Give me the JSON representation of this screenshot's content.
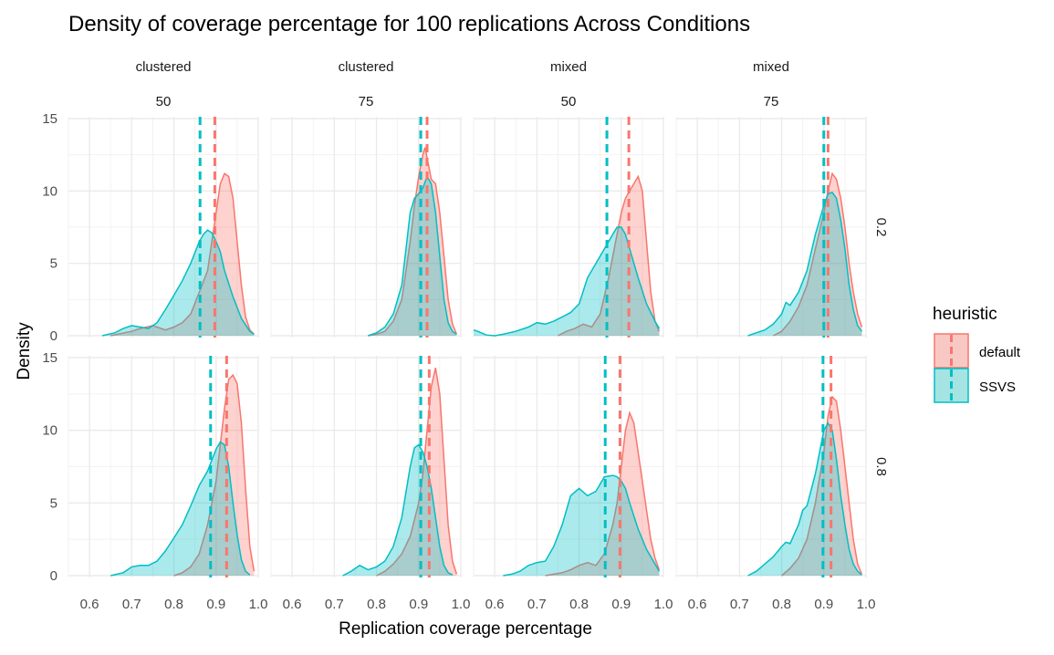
{
  "chart_data": {
    "type": "area",
    "title": "Density of coverage percentage for 100 replications Across Conditions",
    "xlabel": "Replication coverage percentage",
    "ylabel": "Density",
    "xlim": [
      0.55,
      1.0
    ],
    "ylim": [
      0,
      15
    ],
    "x_ticks": [
      "0.6",
      "0.7",
      "0.8",
      "0.9",
      "1.0"
    ],
    "y_ticks": [
      "0",
      "5",
      "10",
      "15"
    ],
    "grid": true,
    "legend": {
      "title": "heuristic",
      "position": "right",
      "entries": [
        {
          "label": "default",
          "color": "#F8766D",
          "fill": "#F8C9C4"
        },
        {
          "label": "SSVS",
          "color": "#00BFC4",
          "fill": "#A6E3E3"
        }
      ]
    },
    "col_facets": [
      {
        "top": "clustered",
        "bottom": "50"
      },
      {
        "top": "clustered",
        "bottom": "75"
      },
      {
        "top": "mixed",
        "bottom": "50"
      },
      {
        "top": "mixed",
        "bottom": "75"
      }
    ],
    "row_facets": [
      "0.2",
      "0.8"
    ],
    "panels": [
      {
        "row": 0,
        "col": 0,
        "default": {
          "x": [
            0.65,
            0.7,
            0.72,
            0.75,
            0.78,
            0.8,
            0.82,
            0.84,
            0.86,
            0.88,
            0.9,
            0.91,
            0.92,
            0.93,
            0.94,
            0.95,
            0.96,
            0.97,
            0.98,
            0.99
          ],
          "y": [
            0,
            0.3,
            0.5,
            0.7,
            0.4,
            0.6,
            0.9,
            1.5,
            3.0,
            4.5,
            8.5,
            10.5,
            11.2,
            11.0,
            9.5,
            6.5,
            3.5,
            1.3,
            0.4,
            0.1
          ],
          "mean": 0.897
        },
        "ssvs": {
          "x": [
            0.63,
            0.66,
            0.68,
            0.7,
            0.72,
            0.74,
            0.76,
            0.78,
            0.8,
            0.82,
            0.84,
            0.86,
            0.87,
            0.88,
            0.89,
            0.9,
            0.91,
            0.92,
            0.94,
            0.96,
            0.98,
            0.99
          ],
          "y": [
            0,
            0.2,
            0.5,
            0.7,
            0.6,
            0.5,
            0.9,
            1.8,
            2.8,
            3.8,
            5.0,
            6.5,
            7.0,
            7.3,
            7.1,
            6.5,
            5.8,
            4.5,
            2.7,
            1.2,
            0.3,
            0.1
          ],
          "mean": 0.862
        }
      },
      {
        "row": 0,
        "col": 1,
        "default": {
          "x": [
            0.78,
            0.8,
            0.82,
            0.84,
            0.86,
            0.88,
            0.89,
            0.9,
            0.91,
            0.915,
            0.92,
            0.93,
            0.94,
            0.95,
            0.96,
            0.97,
            0.98,
            0.99
          ],
          "y": [
            0,
            0.1,
            0.3,
            1.0,
            2.5,
            6.5,
            9.0,
            11.0,
            12.5,
            13.0,
            12.3,
            10.8,
            10.5,
            8.5,
            5.5,
            2.5,
            0.8,
            0.1
          ],
          "mean": 0.92
        },
        "ssvs": {
          "x": [
            0.78,
            0.8,
            0.82,
            0.84,
            0.86,
            0.87,
            0.88,
            0.89,
            0.9,
            0.91,
            0.92,
            0.93,
            0.94,
            0.95,
            0.96,
            0.97,
            0.98,
            0.99
          ],
          "y": [
            0,
            0.2,
            0.6,
            1.5,
            3.5,
            6.0,
            8.5,
            9.5,
            9.8,
            10.2,
            11.0,
            10.5,
            8.5,
            5.5,
            2.5,
            0.9,
            0.3,
            0.1
          ],
          "mean": 0.905
        }
      },
      {
        "row": 1,
        "col": 0,
        "default": {
          "x": [
            0.8,
            0.82,
            0.84,
            0.86,
            0.88,
            0.9,
            0.91,
            0.92,
            0.93,
            0.94,
            0.95,
            0.96,
            0.97,
            0.98,
            0.99
          ],
          "y": [
            0,
            0.2,
            0.6,
            1.5,
            3.5,
            6.5,
            9.0,
            11.5,
            13.5,
            13.8,
            13.2,
            10.5,
            6.0,
            2.0,
            0.3
          ],
          "mean": 0.925
        },
        "ssvs": {
          "x": [
            0.65,
            0.68,
            0.7,
            0.72,
            0.74,
            0.76,
            0.78,
            0.8,
            0.82,
            0.84,
            0.86,
            0.88,
            0.9,
            0.91,
            0.92,
            0.93,
            0.94,
            0.95,
            0.96,
            0.97,
            0.98
          ],
          "y": [
            0,
            0.2,
            0.6,
            0.7,
            0.7,
            1.0,
            1.7,
            2.6,
            3.5,
            4.8,
            6.2,
            7.2,
            8.7,
            9.2,
            9.0,
            7.5,
            5.0,
            2.8,
            1.1,
            0.3,
            0.05
          ],
          "mean": 0.887
        }
      },
      {
        "row": 1,
        "col": 1,
        "default": {
          "x": [
            0.8,
            0.82,
            0.84,
            0.86,
            0.88,
            0.9,
            0.91,
            0.92,
            0.93,
            0.94,
            0.95,
            0.96,
            0.97,
            0.98,
            0.99
          ],
          "y": [
            0,
            0.3,
            0.8,
            1.5,
            2.7,
            5.0,
            7.0,
            10.0,
            13.0,
            14.3,
            12.5,
            8.0,
            3.5,
            1.0,
            0.1
          ],
          "mean": 0.925
        },
        "ssvs": {
          "x": [
            0.72,
            0.74,
            0.76,
            0.78,
            0.8,
            0.82,
            0.84,
            0.86,
            0.88,
            0.89,
            0.9,
            0.91,
            0.92,
            0.93,
            0.94,
            0.95,
            0.96,
            0.97,
            0.98
          ],
          "y": [
            0,
            0.3,
            0.7,
            0.4,
            0.6,
            1.0,
            2.0,
            4.0,
            7.5,
            8.8,
            9.0,
            8.5,
            7.5,
            6.0,
            4.0,
            2.0,
            0.7,
            0.2,
            0.05
          ],
          "mean": 0.905
        }
      },
      {
        "row": 0,
        "col": 2,
        "default": {
          "x": [
            0.75,
            0.77,
            0.79,
            0.81,
            0.83,
            0.85,
            0.87,
            0.89,
            0.9,
            0.91,
            0.92,
            0.93,
            0.94,
            0.95,
            0.96,
            0.97,
            0.98,
            0.99
          ],
          "y": [
            0,
            0.3,
            0.5,
            0.8,
            0.6,
            1.5,
            4.0,
            7.0,
            8.5,
            9.5,
            10.0,
            10.5,
            11.0,
            10.0,
            6.5,
            3.0,
            1.0,
            0.3
          ],
          "mean": 0.918
        },
        "ssvs": {
          "x": [
            0.55,
            0.56,
            0.58,
            0.6,
            0.62,
            0.65,
            0.68,
            0.7,
            0.72,
            0.74,
            0.76,
            0.78,
            0.8,
            0.82,
            0.84,
            0.86,
            0.88,
            0.89,
            0.9,
            0.91,
            0.92,
            0.94,
            0.96,
            0.98,
            0.99
          ],
          "y": [
            0.4,
            0.3,
            0.05,
            0,
            0.1,
            0.3,
            0.6,
            0.9,
            0.8,
            1.0,
            1.3,
            1.6,
            2.2,
            4.0,
            5.0,
            6.0,
            7.0,
            7.5,
            7.5,
            7.0,
            6.0,
            4.0,
            2.2,
            1.0,
            0.5
          ],
          "mean": 0.866
        }
      },
      {
        "row": 0,
        "col": 3,
        "default": {
          "x": [
            0.78,
            0.8,
            0.82,
            0.84,
            0.86,
            0.88,
            0.9,
            0.91,
            0.92,
            0.93,
            0.94,
            0.95,
            0.96,
            0.97,
            0.98,
            0.99
          ],
          "y": [
            0,
            0.3,
            1.0,
            2.0,
            3.5,
            6.0,
            8.5,
            10.0,
            11.2,
            10.8,
            9.5,
            7.5,
            5.0,
            3.0,
            1.5,
            0.6
          ],
          "mean": 0.91
        },
        "ssvs": {
          "x": [
            0.72,
            0.74,
            0.76,
            0.78,
            0.8,
            0.81,
            0.82,
            0.84,
            0.86,
            0.88,
            0.9,
            0.91,
            0.92,
            0.93,
            0.94,
            0.95,
            0.96,
            0.97,
            0.98,
            0.99
          ],
          "y": [
            0,
            0.2,
            0.4,
            0.8,
            1.5,
            2.3,
            2.1,
            3.0,
            4.5,
            7.0,
            9.0,
            9.8,
            9.9,
            9.5,
            8.0,
            6.0,
            3.5,
            1.8,
            0.7,
            0.3
          ],
          "mean": 0.9
        }
      },
      {
        "row": 1,
        "col": 2,
        "default": {
          "x": [
            0.72,
            0.74,
            0.76,
            0.78,
            0.8,
            0.82,
            0.84,
            0.86,
            0.88,
            0.89,
            0.9,
            0.91,
            0.92,
            0.93,
            0.94,
            0.95,
            0.96,
            0.97,
            0.98,
            0.99
          ],
          "y": [
            0,
            0.1,
            0.2,
            0.4,
            0.7,
            0.9,
            0.7,
            1.5,
            3.5,
            5.0,
            7.5,
            10.0,
            11.2,
            10.5,
            8.5,
            6.5,
            4.5,
            2.5,
            1.2,
            0.4
          ],
          "mean": 0.897
        },
        "ssvs": {
          "x": [
            0.62,
            0.64,
            0.66,
            0.68,
            0.7,
            0.72,
            0.74,
            0.76,
            0.78,
            0.8,
            0.82,
            0.84,
            0.86,
            0.88,
            0.89,
            0.9,
            0.91,
            0.92,
            0.94,
            0.96,
            0.98,
            0.99
          ],
          "y": [
            0,
            0.1,
            0.3,
            0.7,
            0.9,
            1.0,
            2.0,
            3.5,
            5.5,
            6.0,
            5.5,
            5.8,
            6.8,
            6.9,
            6.8,
            6.5,
            6.0,
            5.0,
            3.2,
            1.8,
            0.8,
            0.3
          ],
          "mean": 0.862
        }
      },
      {
        "row": 1,
        "col": 3,
        "default": {
          "x": [
            0.8,
            0.82,
            0.84,
            0.86,
            0.88,
            0.9,
            0.91,
            0.92,
            0.93,
            0.94,
            0.95,
            0.96,
            0.97,
            0.98,
            0.99
          ],
          "y": [
            0,
            0.5,
            1.2,
            2.5,
            5.0,
            8.5,
            11.0,
            12.3,
            12.0,
            10.0,
            7.5,
            5.0,
            2.5,
            0.8,
            0.1
          ],
          "mean": 0.917
        },
        "ssvs": {
          "x": [
            0.72,
            0.74,
            0.76,
            0.78,
            0.8,
            0.81,
            0.82,
            0.84,
            0.85,
            0.86,
            0.88,
            0.9,
            0.91,
            0.92,
            0.93,
            0.94,
            0.95,
            0.96,
            0.97,
            0.98,
            0.99
          ],
          "y": [
            0,
            0.3,
            0.8,
            1.3,
            2.0,
            2.3,
            2.2,
            3.5,
            4.5,
            4.8,
            7.0,
            10.0,
            10.5,
            10.0,
            8.0,
            5.5,
            3.5,
            1.8,
            0.8,
            0.3,
            0.05
          ],
          "mean": 0.898
        }
      }
    ]
  }
}
